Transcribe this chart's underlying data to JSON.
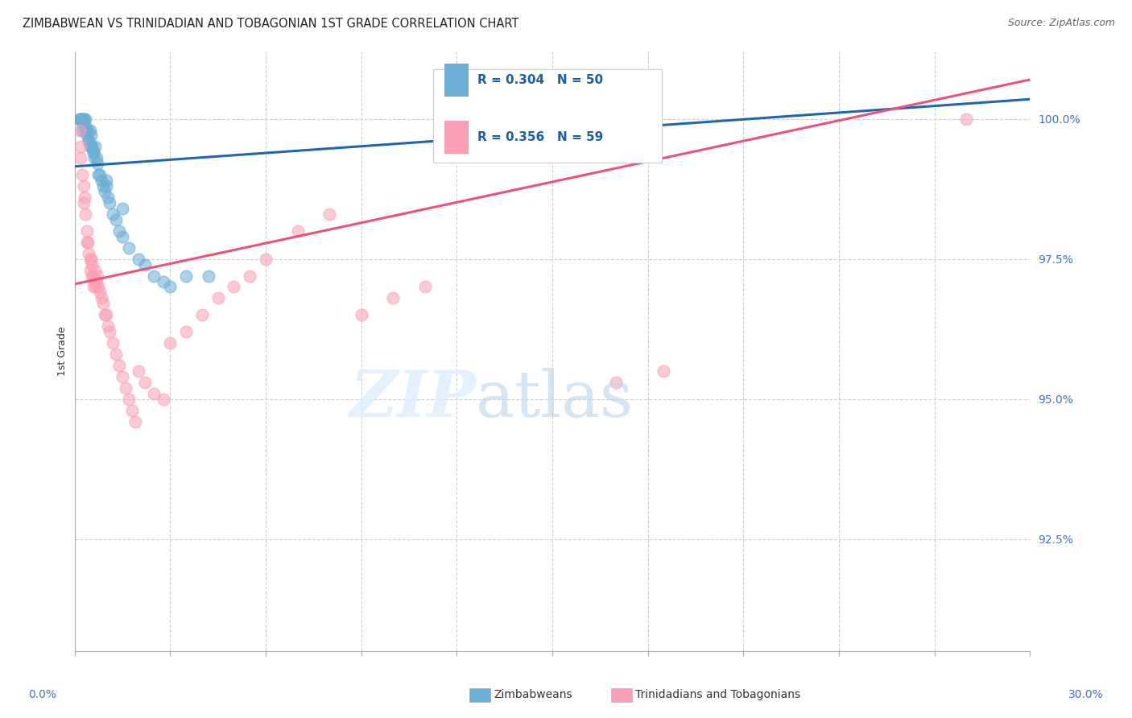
{
  "title": "ZIMBABWEAN VS TRINIDADIAN AND TOBAGONIAN 1ST GRADE CORRELATION CHART",
  "source": "Source: ZipAtlas.com",
  "ylabel": "1st Grade",
  "legend_label1": "Zimbabweans",
  "legend_label2": "Trinidadians and Tobagonians",
  "r1": 0.304,
  "n1": 50,
  "r2": 0.356,
  "n2": 59,
  "color1": "#6baed6",
  "color2": "#fa9fb5",
  "trendline1_color": "#2166ac",
  "trendline2_color": "#e8547a",
  "xmin": 0.0,
  "xmax": 30.0,
  "ymin": 90.5,
  "ymax": 101.2,
  "yticks": [
    92.5,
    95.0,
    97.5,
    100.0
  ],
  "blue_trend_y0": 99.15,
  "blue_trend_y1": 100.35,
  "pink_trend_y0": 97.05,
  "pink_trend_y1": 100.7,
  "blue_x": [
    0.15,
    0.18,
    0.2,
    0.22,
    0.25,
    0.25,
    0.28,
    0.3,
    0.32,
    0.35,
    0.35,
    0.38,
    0.4,
    0.42,
    0.45,
    0.48,
    0.5,
    0.52,
    0.55,
    0.55,
    0.6,
    0.62,
    0.65,
    0.7,
    0.72,
    0.75,
    0.8,
    0.85,
    0.9,
    0.95,
    1.0,
    1.05,
    1.1,
    1.2,
    1.3,
    1.4,
    1.5,
    1.7,
    2.0,
    2.2,
    2.5,
    2.8,
    3.0,
    3.5,
    4.2,
    0.3,
    0.45,
    0.6,
    1.0,
    1.5
  ],
  "blue_y": [
    100.0,
    100.0,
    100.0,
    100.0,
    100.0,
    99.8,
    100.0,
    100.0,
    99.9,
    99.8,
    100.0,
    99.7,
    99.8,
    99.8,
    99.6,
    99.5,
    99.8,
    99.7,
    99.5,
    99.5,
    99.4,
    99.3,
    99.5,
    99.3,
    99.2,
    99.0,
    99.0,
    98.9,
    98.8,
    98.7,
    98.8,
    98.6,
    98.5,
    98.3,
    98.2,
    98.0,
    97.9,
    97.7,
    97.5,
    97.4,
    97.2,
    97.1,
    97.0,
    97.2,
    97.2,
    99.9,
    99.6,
    99.4,
    98.9,
    98.4
  ],
  "pink_x": [
    0.15,
    0.18,
    0.2,
    0.25,
    0.28,
    0.3,
    0.32,
    0.35,
    0.38,
    0.4,
    0.42,
    0.45,
    0.48,
    0.5,
    0.52,
    0.55,
    0.55,
    0.58,
    0.6,
    0.62,
    0.65,
    0.68,
    0.7,
    0.72,
    0.75,
    0.8,
    0.85,
    0.9,
    0.95,
    1.0,
    1.05,
    1.1,
    1.2,
    1.3,
    1.4,
    1.5,
    1.6,
    1.7,
    1.8,
    1.9,
    2.0,
    2.2,
    2.5,
    2.8,
    3.0,
    3.5,
    4.0,
    4.5,
    5.0,
    5.5,
    6.0,
    7.0,
    8.0,
    9.0,
    10.0,
    11.0,
    17.0,
    18.5,
    28.0
  ],
  "pink_y": [
    99.8,
    99.5,
    99.3,
    99.0,
    98.8,
    98.5,
    98.6,
    98.3,
    98.0,
    97.8,
    97.8,
    97.6,
    97.5,
    97.3,
    97.5,
    97.4,
    97.2,
    97.2,
    97.0,
    97.1,
    97.3,
    97.0,
    97.1,
    97.2,
    97.0,
    96.9,
    96.8,
    96.7,
    96.5,
    96.5,
    96.3,
    96.2,
    96.0,
    95.8,
    95.6,
    95.4,
    95.2,
    95.0,
    94.8,
    94.6,
    95.5,
    95.3,
    95.1,
    95.0,
    96.0,
    96.2,
    96.5,
    96.8,
    97.0,
    97.2,
    97.5,
    98.0,
    98.3,
    96.5,
    96.8,
    97.0,
    95.3,
    95.5,
    100.0
  ]
}
